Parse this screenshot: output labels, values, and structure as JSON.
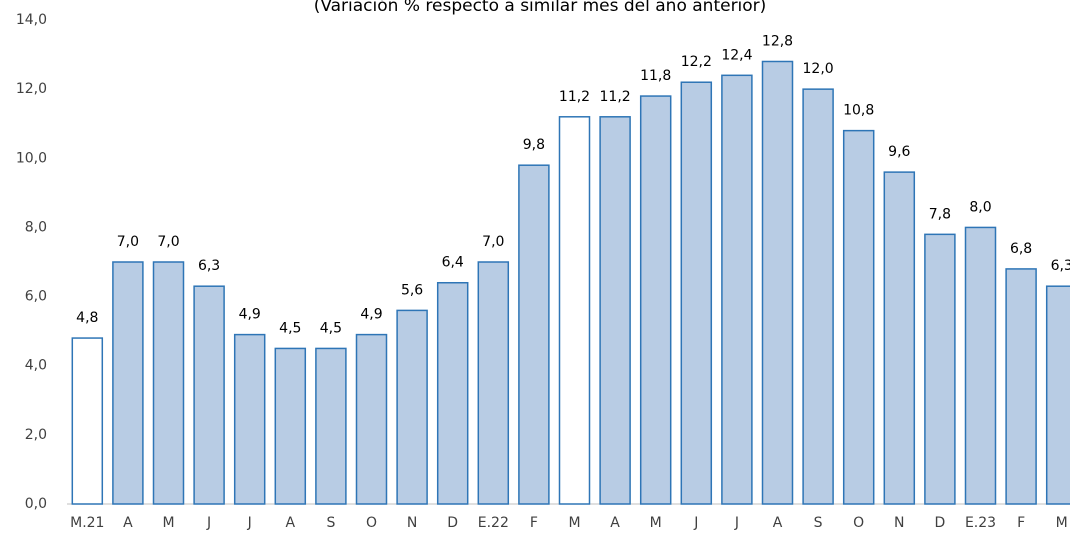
{
  "chart_data": {
    "type": "bar",
    "subtitle": "(Variación % respecto a similar mes del año anterior)",
    "categories": [
      "M.21",
      "A",
      "M",
      "J",
      "J",
      "A",
      "S",
      "O",
      "N",
      "D",
      "E.22",
      "F",
      "M",
      "A",
      "M",
      "J",
      "J",
      "A",
      "S",
      "O",
      "N",
      "D",
      "E.23",
      "F",
      "M"
    ],
    "values": [
      4.8,
      7.0,
      7.0,
      6.3,
      4.9,
      4.5,
      4.5,
      4.9,
      5.6,
      6.4,
      7.0,
      9.8,
      11.2,
      11.2,
      11.8,
      12.2,
      12.4,
      12.8,
      12.0,
      10.8,
      9.6,
      7.8,
      8.0,
      6.8,
      6.3
    ],
    "value_labels": [
      "4,8",
      "7,0",
      "7,0",
      "6,3",
      "4,9",
      "4,5",
      "4,5",
      "4,9",
      "5,6",
      "6,4",
      "7,0",
      "9,8",
      "11,2",
      "11,2",
      "11,8",
      "12,2",
      "12,4",
      "12,8",
      "12,0",
      "10,8",
      "9,6",
      "7,8",
      "8,0",
      "6,8",
      "6,3"
    ],
    "colors": [
      "#ffffff",
      "#b8cce4",
      "#b8cce4",
      "#b8cce4",
      "#b8cce4",
      "#b8cce4",
      "#b8cce4",
      "#b8cce4",
      "#b8cce4",
      "#b8cce4",
      "#b8cce4",
      "#b8cce4",
      "#ffffff",
      "#b8cce4",
      "#b8cce4",
      "#b8cce4",
      "#b8cce4",
      "#b8cce4",
      "#b8cce4",
      "#b8cce4",
      "#b8cce4",
      "#b8cce4",
      "#b8cce4",
      "#b8cce4",
      "#b8cce4"
    ],
    "edge_color": "#2e75b6",
    "ylim": [
      0,
      14
    ],
    "yticks": [
      {
        "value": 0,
        "label": "0,0"
      },
      {
        "value": 2,
        "label": "2,0"
      },
      {
        "value": 4,
        "label": "4,0"
      },
      {
        "value": 6,
        "label": "6,0"
      },
      {
        "value": 8,
        "label": "8,0"
      },
      {
        "value": 10,
        "label": "10,0"
      },
      {
        "value": 12,
        "label": "12,0"
      },
      {
        "value": 14,
        "label": "14,0"
      }
    ],
    "grid": false
  }
}
